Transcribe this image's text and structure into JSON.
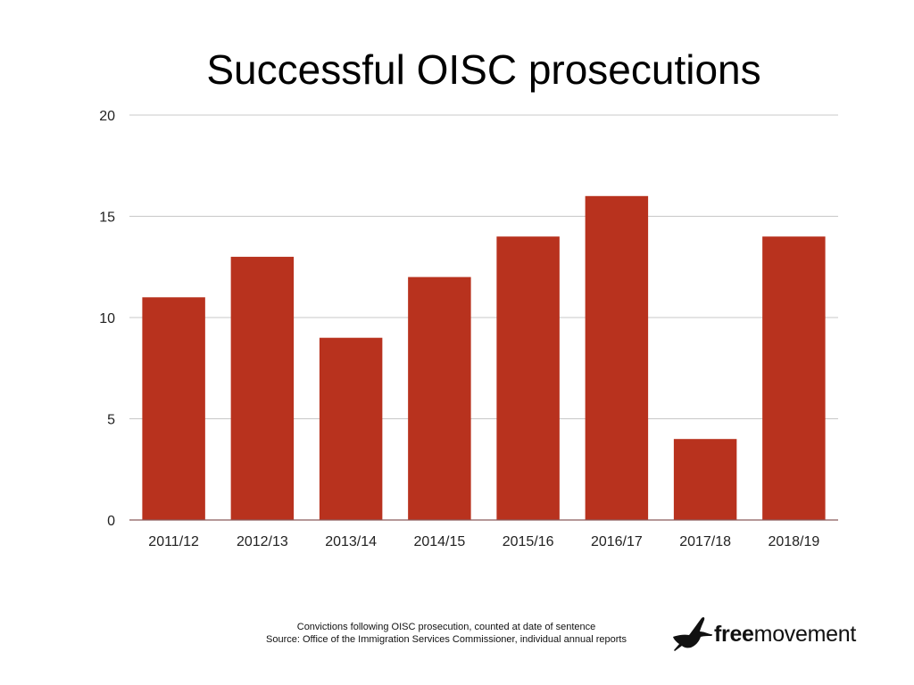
{
  "chart_data": {
    "type": "bar",
    "title": "Successful OISC prosecutions",
    "categories": [
      "2011/12",
      "2012/13",
      "2013/14",
      "2014/15",
      "2015/16",
      "2016/17",
      "2017/18",
      "2018/19"
    ],
    "values": [
      11,
      13,
      9,
      12,
      14,
      16,
      4,
      14
    ],
    "yticks": [
      0,
      5,
      10,
      15,
      20
    ],
    "ylim": [
      0,
      20
    ],
    "xlabel": "",
    "ylabel": "",
    "grid": true,
    "bar_color": "#b8321e",
    "grid_color": "#c8c8c8",
    "axis_color": "#8a5a5a"
  },
  "footnote": {
    "line1": "Convictions following OISC prosecution, counted at date of sentence",
    "line2": "Source: Office of the Immigration Services Commissioner, individual annual reports"
  },
  "logo": {
    "bold": "free",
    "regular": "movement",
    "icon": "heron-bird-icon"
  }
}
